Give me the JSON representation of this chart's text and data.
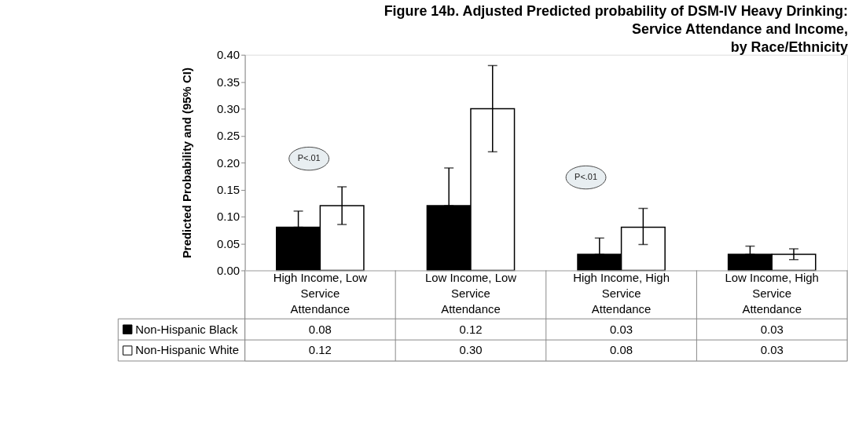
{
  "chart_data": {
    "type": "bar",
    "title": "Figure 14b. Adjusted Predicted probability of DSM-IV Heavy Drinking:\nService Attendance and Income,\nby Race/Ethnicity",
    "ylabel": "Predicted Probability and (95% CI)",
    "categories": [
      "High Income, Low Service Attendance",
      "Low Income, Low Service Attendance",
      "High Income, High Service Attendance",
      "Low Income, High Service Attendance"
    ],
    "series": [
      {
        "name": "Non-Hispanic Black",
        "color": "#000000",
        "values": [
          0.08,
          0.12,
          0.03,
          0.03
        ],
        "value_labels": [
          "0.08",
          "0.12",
          "0.03",
          "0.03"
        ],
        "errors": [
          [
            0.08,
            0.11
          ],
          [
            0.12,
            0.19
          ],
          [
            0.03,
            0.06
          ],
          [
            0.03,
            0.045
          ]
        ]
      },
      {
        "name": "Non-Hispanic White",
        "color": "#ffffff",
        "values": [
          0.12,
          0.3,
          0.08,
          0.03
        ],
        "value_labels": [
          "0.12",
          "0.30",
          "0.08",
          "0.03"
        ],
        "errors": [
          [
            0.085,
            0.155
          ],
          [
            0.22,
            0.38
          ],
          [
            0.048,
            0.115
          ],
          [
            0.02,
            0.04
          ]
        ]
      }
    ],
    "ylim": [
      0,
      0.4
    ],
    "yticks": [
      {
        "value": 0,
        "label": "0.00"
      },
      {
        "value": 0.05,
        "label": "0.05"
      },
      {
        "value": 0.1,
        "label": "0.10"
      },
      {
        "value": 0.15,
        "label": "0.15"
      },
      {
        "value": 0.2,
        "label": "0.20"
      },
      {
        "value": 0.25,
        "label": "0.25"
      },
      {
        "value": 0.3,
        "label": "0.30"
      },
      {
        "value": 0.35,
        "label": "0.35"
      },
      {
        "value": 0.4,
        "label": "0.40"
      }
    ],
    "annotations": [
      "P<.01",
      "P<.01"
    ],
    "legend": "bottom",
    "grid": false
  }
}
